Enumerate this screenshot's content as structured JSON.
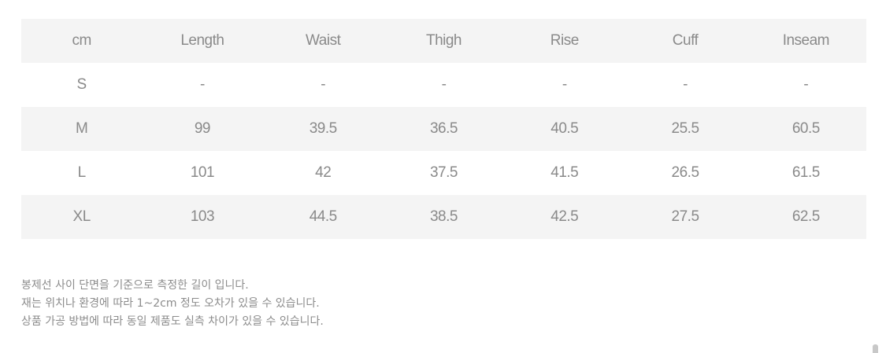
{
  "table": {
    "headers": [
      "cm",
      "Length",
      "Waist",
      "Thigh",
      "Rise",
      "Cuff",
      "Inseam"
    ],
    "rows": [
      [
        "S",
        "-",
        "-",
        "-",
        "-",
        "-",
        "-"
      ],
      [
        "M",
        "99",
        "39.5",
        "36.5",
        "40.5",
        "25.5",
        "60.5"
      ],
      [
        "L",
        "101",
        "42",
        "37.5",
        "41.5",
        "26.5",
        "61.5"
      ],
      [
        "XL",
        "103",
        "44.5",
        "38.5",
        "42.5",
        "27.5",
        "62.5"
      ]
    ]
  },
  "notes": [
    "봉제선 사이 단면을 기준으로 측정한 길이 입니다.",
    "재는 위치나 환경에 따라 1~2cm 정도 오차가 있을 수 있습니다.",
    "상품 가공 방법에 따라 동일 제품도 실측 차이가 있을 수 있습니다."
  ],
  "colors": {
    "row_shade": "#f4f4f4",
    "text": "#8a8a8a"
  }
}
